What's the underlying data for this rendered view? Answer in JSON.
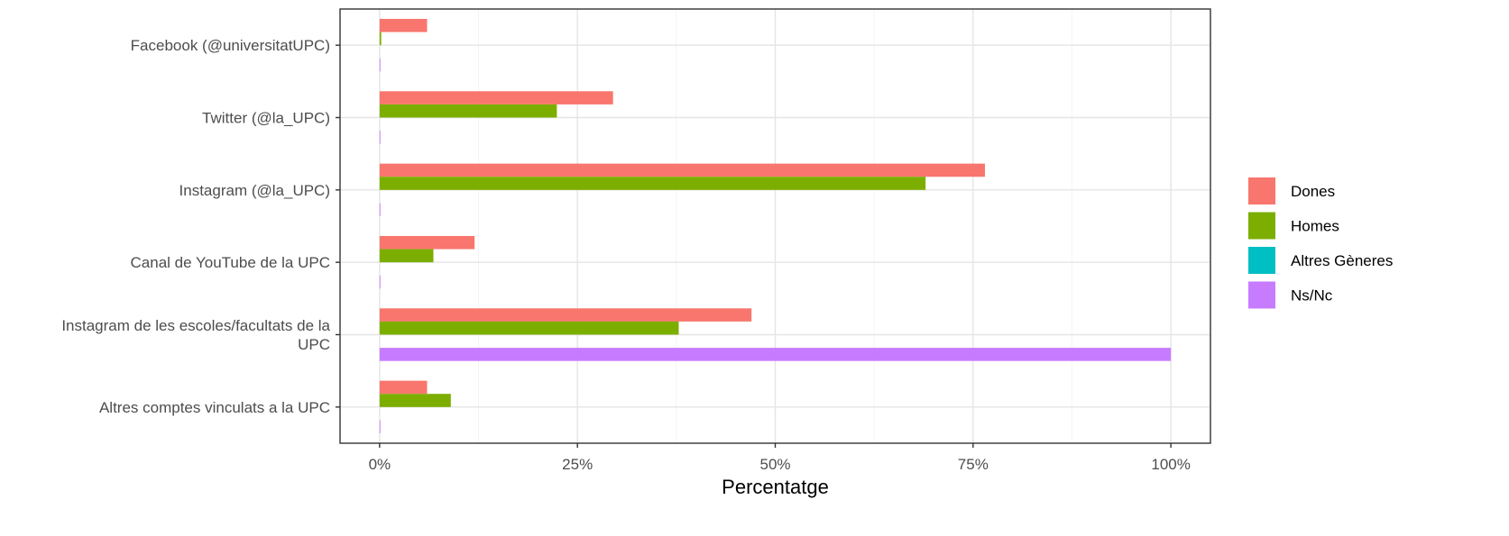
{
  "chart_data": {
    "type": "bar",
    "orientation": "horizontal",
    "categories": [
      "Facebook (@universitatUPC)",
      "Twitter (@la_UPC)",
      "Instagram (@la_UPC)",
      "Canal de YouTube de la UPC",
      "Instagram de les escoles/facultats de la UPC",
      "Altres comptes vinculats a la UPC"
    ],
    "category_lines": [
      [
        "Facebook (@universitatUPC)"
      ],
      [
        "Twitter (@la_UPC)"
      ],
      [
        "Instagram (@la_UPC)"
      ],
      [
        "Canal de YouTube de la UPC"
      ],
      [
        "Instagram de les escoles/facultats de la",
        "UPC"
      ],
      [
        "Altres comptes vinculats a la UPC"
      ]
    ],
    "series": [
      {
        "name": "Dones",
        "color": "#F8766D",
        "values": [
          6,
          29.5,
          76.5,
          12,
          47,
          6
        ]
      },
      {
        "name": "Homes",
        "color": "#7CAE00",
        "values": [
          0.2,
          22.4,
          69,
          6.8,
          37.8,
          9
        ]
      },
      {
        "name": "Altres Gèneres",
        "color": "#00BFC4",
        "values": [
          0,
          0,
          0,
          0,
          0,
          0
        ]
      },
      {
        "name": "Ns/Nc",
        "color": "#C77CFF",
        "values": [
          0.1,
          0.1,
          0.1,
          0.1,
          100,
          0.1
        ]
      }
    ],
    "xlabel": "Percentatge",
    "ylabel": "",
    "xlim": [
      -5,
      105
    ],
    "xticks": [
      0,
      25,
      50,
      75,
      100
    ],
    "xtick_labels": [
      "0%",
      "25%",
      "50%",
      "75%",
      "100%"
    ],
    "grid": true,
    "legend": "right"
  }
}
